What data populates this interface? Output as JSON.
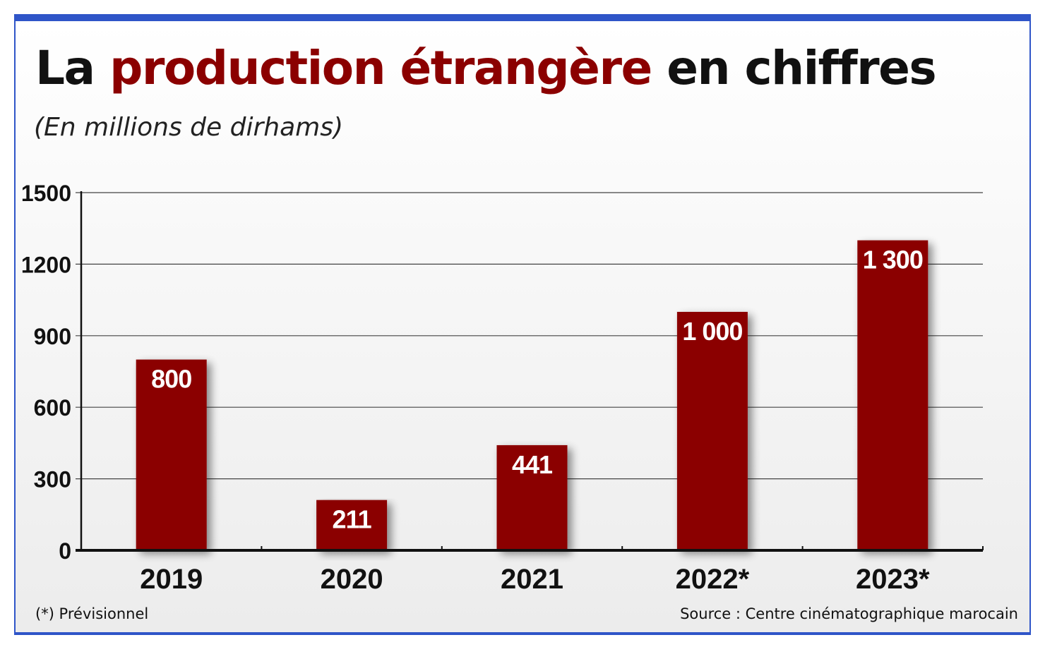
{
  "title": {
    "part1": "La ",
    "accent": "production étrangère",
    "part2": " en chiffres"
  },
  "subtitle": "(En millions de dirhams)",
  "footnote": "(*) Prévisionnel",
  "source": "Source : Centre cinématographique marocain",
  "colors": {
    "accent": "#8b0000",
    "bar": "#8b0000",
    "frame": "#2f55c8"
  },
  "chart_data": {
    "type": "bar",
    "categories": [
      "2019",
      "2020",
      "2021",
      "2022*",
      "2023*"
    ],
    "values": [
      800,
      211,
      441,
      1000,
      1300
    ],
    "value_labels": [
      "800",
      "211",
      "441",
      "1 000",
      "1 300"
    ],
    "yticks": [
      "0",
      "300",
      "600",
      "900",
      "1200",
      "1500"
    ],
    "ylim": [
      0,
      1500
    ],
    "grid": true,
    "legend": "none"
  }
}
